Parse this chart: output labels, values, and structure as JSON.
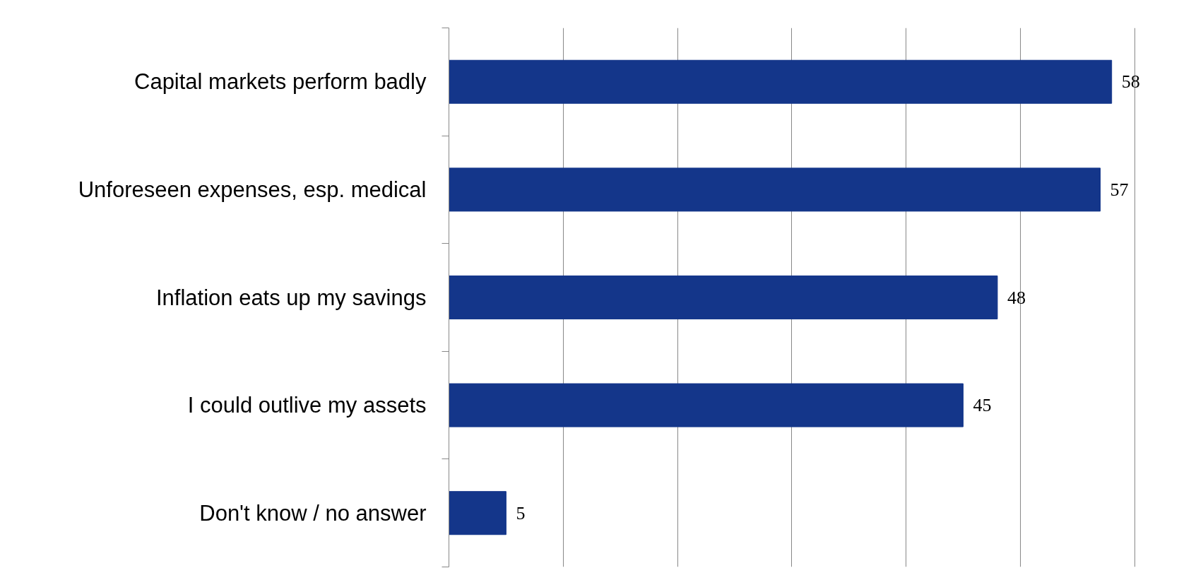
{
  "chart_data": {
    "type": "bar",
    "orientation": "horizontal",
    "categories": [
      "Capital markets perform badly",
      "Unforeseen expenses, esp. medical",
      "Inflation eats up my savings",
      "I could outlive my assets",
      "Don't know / no answer"
    ],
    "values": [
      58,
      57,
      48,
      45,
      5
    ],
    "color": "#14368a",
    "xticks": [
      {
        "value": 0,
        "label": null
      },
      {
        "value": 10,
        "label": null
      },
      {
        "value": 20,
        "label": null
      },
      {
        "value": 30,
        "label": null
      },
      {
        "value": 40,
        "label": null
      },
      {
        "value": 50,
        "label": null
      },
      {
        "value": 60,
        "label": null
      }
    ],
    "grid": "x",
    "data_labels": true,
    "tick_labels": "y"
  }
}
